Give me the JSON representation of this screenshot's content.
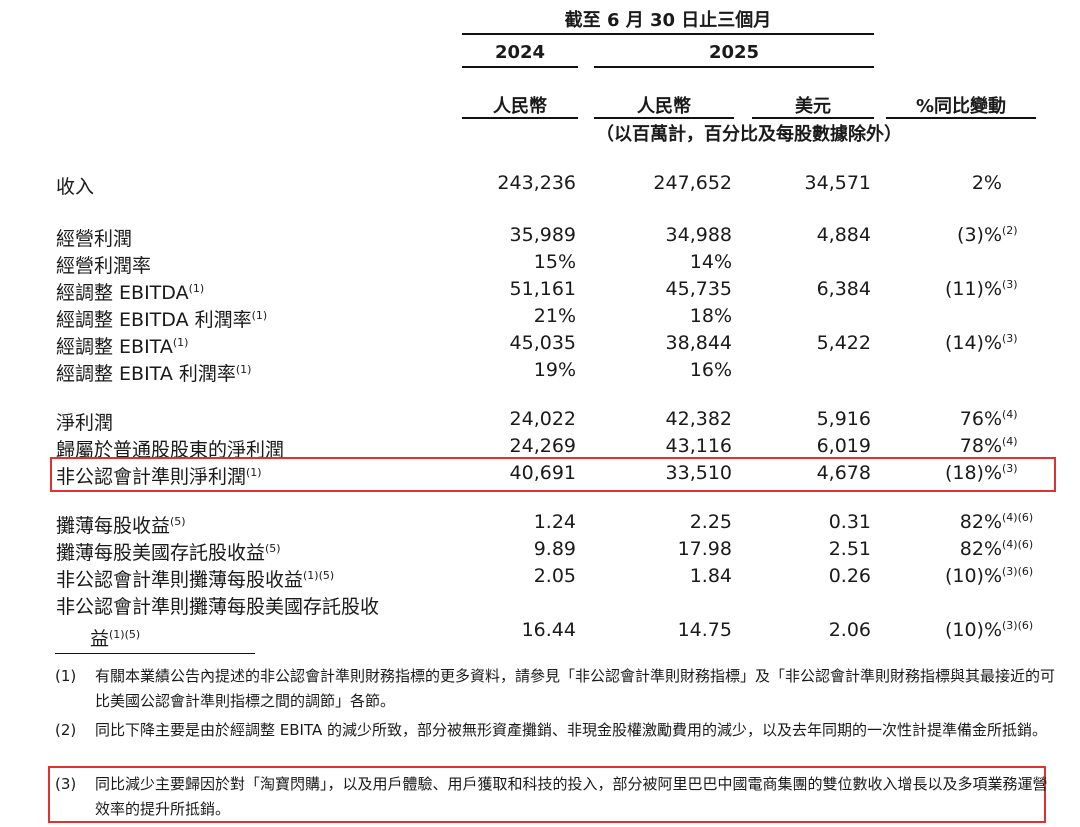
{
  "header": {
    "period": "截至 6 月 30 日止三個月",
    "year_2024": "2024",
    "year_2025": "2025",
    "col_rmb_2024": "人民幣",
    "col_rmb_2025": "人民幣",
    "col_usd": "美元",
    "col_yoy": "%同比變動",
    "units_note": "（以百萬計，百分比及每股數據除外）"
  },
  "rows": [
    {
      "label": "收入",
      "sup": "",
      "v2024": "243,236",
      "v2025": "247,652",
      "usd": "34,571",
      "yoy": "2%",
      "yoy_sup": ""
    },
    {
      "label": "經營利潤",
      "sup": "",
      "v2024": "35,989",
      "v2025": "34,988",
      "usd": "4,884",
      "yoy": "(3)%",
      "yoy_sup": "(2)"
    },
    {
      "label": "經營利潤率",
      "sup": "",
      "v2024": "15%",
      "v2025": "14%",
      "usd": "",
      "yoy": "",
      "yoy_sup": ""
    },
    {
      "label": "經調整 EBITDA",
      "sup": "(1)",
      "v2024": "51,161",
      "v2025": "45,735",
      "usd": "6,384",
      "yoy": "(11)%",
      "yoy_sup": "(3)"
    },
    {
      "label": "經調整 EBITDA 利潤率",
      "sup": "(1)",
      "v2024": "21%",
      "v2025": "18%",
      "usd": "",
      "yoy": "",
      "yoy_sup": ""
    },
    {
      "label": "經調整 EBITA",
      "sup": "(1)",
      "v2024": "45,035",
      "v2025": "38,844",
      "usd": "5,422",
      "yoy": "(14)%",
      "yoy_sup": "(3)"
    },
    {
      "label": "經調整 EBITA 利潤率",
      "sup": "(1)",
      "v2024": "19%",
      "v2025": "16%",
      "usd": "",
      "yoy": "",
      "yoy_sup": ""
    },
    {
      "label": "淨利潤",
      "sup": "",
      "v2024": "24,022",
      "v2025": "42,382",
      "usd": "5,916",
      "yoy": "76%",
      "yoy_sup": "(4)"
    },
    {
      "label": "歸屬於普通股股東的淨利潤",
      "sup": "",
      "v2024": "24,269",
      "v2025": "43,116",
      "usd": "6,019",
      "yoy": "78%",
      "yoy_sup": "(4)"
    },
    {
      "label": "非公認會計準則淨利潤",
      "sup": "(1)",
      "v2024": "40,691",
      "v2025": "33,510",
      "usd": "4,678",
      "yoy": "(18)%",
      "yoy_sup": "(3)"
    },
    {
      "label": "攤薄每股收益",
      "sup": "(5)",
      "v2024": "1.24",
      "v2025": "2.25",
      "usd": "0.31",
      "yoy": "82%",
      "yoy_sup": "(4)(6)"
    },
    {
      "label": "攤薄每股美國存託股收益",
      "sup": "(5)",
      "v2024": "9.89",
      "v2025": "17.98",
      "usd": "2.51",
      "yoy": "82%",
      "yoy_sup": "(4)(6)"
    },
    {
      "label": "非公認會計準則攤薄每股收益",
      "sup": "(1)(5)",
      "v2024": "2.05",
      "v2025": "1.84",
      "usd": "0.26",
      "yoy": "(10)%",
      "yoy_sup": "(3)(6)"
    },
    {
      "label": "非公認會計準則攤薄每股美國存託股收",
      "label_line2": "益",
      "sup": "(1)(5)",
      "v2024": "16.44",
      "v2025": "14.75",
      "usd": "2.06",
      "yoy": "(10)%",
      "yoy_sup": "(3)(6)"
    }
  ],
  "footnotes": [
    {
      "num": "(1)",
      "text": "有關本業績公告內提述的非公認會計準則財務指標的更多資料，請參見「非公認會計準則財務指標」及「非公認會計準則財務指標與其最接近的可比美國公認會計準則指標之間的調節」各節。"
    },
    {
      "num": "(2)",
      "text": "同比下降主要是由於經調整 EBITA 的減少所致，部分被無形資產攤銷、非現金股權激勵費用的減少，以及去年同期的一次性計提準備金所抵銷。"
    },
    {
      "num": "(3)",
      "text": "同比減少主要歸因於對「淘寶閃購」，以及用戶體驗、用戶獲取和科技的投入，部分被阿里巴巴中國電商集團的雙位數收入增長以及多項業務運營效率的提升所抵銷。"
    }
  ],
  "highlight_color": "#e03030"
}
